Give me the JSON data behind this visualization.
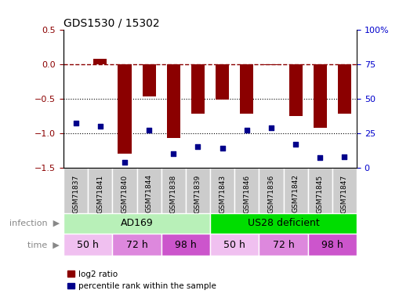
{
  "title": "GDS1530 / 15302",
  "samples": [
    "GSM71837",
    "GSM71841",
    "GSM71840",
    "GSM71844",
    "GSM71838",
    "GSM71839",
    "GSM71843",
    "GSM71846",
    "GSM71836",
    "GSM71842",
    "GSM71845",
    "GSM71847"
  ],
  "log2_ratio": [
    0.0,
    0.07,
    -1.3,
    -0.47,
    -1.07,
    -0.72,
    -0.52,
    -0.72,
    -0.02,
    -0.75,
    -0.92,
    -0.72
  ],
  "percentile_rank": [
    32,
    30,
    4,
    27,
    10,
    15,
    14,
    27,
    29,
    17,
    7,
    8
  ],
  "ylim_left": [
    -1.5,
    0.5
  ],
  "ylim_right": [
    0,
    100
  ],
  "infection_groups": [
    {
      "label": "AD169",
      "start": 0,
      "end": 6,
      "color": "#b8f0b8"
    },
    {
      "label": "US28 deficient",
      "start": 6,
      "end": 12,
      "color": "#00dd00"
    }
  ],
  "time_groups": [
    {
      "label": "50 h",
      "start": 0,
      "end": 2,
      "color": "#f0c0f0"
    },
    {
      "label": "72 h",
      "start": 2,
      "end": 4,
      "color": "#dd88dd"
    },
    {
      "label": "98 h",
      "start": 4,
      "end": 6,
      "color": "#cc55cc"
    },
    {
      "label": "50 h",
      "start": 6,
      "end": 8,
      "color": "#f0c0f0"
    },
    {
      "label": "72 h",
      "start": 8,
      "end": 10,
      "color": "#dd88dd"
    },
    {
      "label": "98 h",
      "start": 10,
      "end": 12,
      "color": "#cc55cc"
    }
  ],
  "bar_color": "#8B0000",
  "dot_color": "#00008B",
  "bar_width": 0.55,
  "dotted_lines": [
    -0.5,
    -1.0
  ],
  "left_yticks": [
    0.5,
    0.0,
    -0.5,
    -1.0,
    -1.5
  ],
  "right_yticks": [
    100,
    75,
    50,
    25,
    0
  ],
  "right_yticklabels": [
    "100%",
    "75",
    "50",
    "25",
    "0"
  ],
  "legend_items": [
    "log2 ratio",
    "percentile rank within the sample"
  ]
}
